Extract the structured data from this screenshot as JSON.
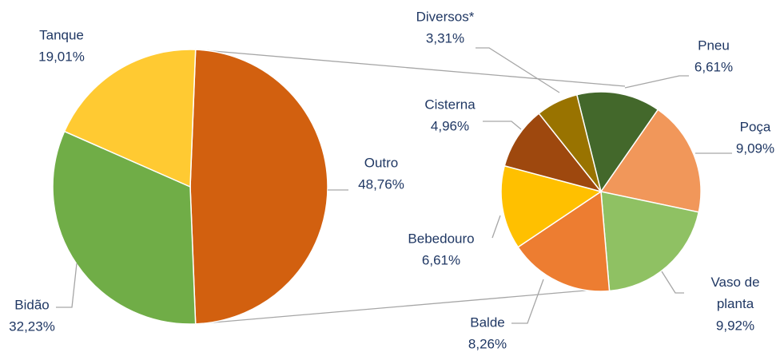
{
  "chart_data": [
    {
      "type": "pie",
      "categories": [
        "Outro",
        "Bidão",
        "Tanque"
      ],
      "values": [
        48.76,
        32.23,
        19.01
      ],
      "value_labels": [
        "48,76%",
        "32,23%",
        "19,01%"
      ],
      "colors": [
        "#D2600F",
        "#70AD47",
        "#FFCA32"
      ]
    },
    {
      "type": "pie",
      "categories": [
        "Pneu",
        "Poça",
        "Vaso de planta",
        "Balde",
        "Bebedouro",
        "Cisterna",
        "Diversos*"
      ],
      "values": [
        6.61,
        9.09,
        9.92,
        8.26,
        6.61,
        4.96,
        3.31
      ],
      "value_labels": [
        "6,61%",
        "9,09%",
        "9,92%",
        "8,26%",
        "6,61%",
        "4,96%",
        "3,31%"
      ],
      "colors": [
        "#43682B",
        "#F1975A",
        "#8FC163",
        "#ED7D31",
        "#FFC000",
        "#9E480E",
        "#997300"
      ]
    }
  ]
}
